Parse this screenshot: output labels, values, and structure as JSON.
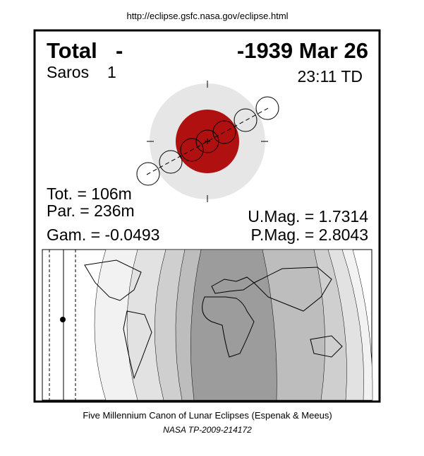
{
  "header": {
    "url": "http://eclipse.gsfc.nasa.gov/eclipse.html"
  },
  "eclipse": {
    "type": "Total",
    "dash": "-",
    "date": "-1939 Mar 26",
    "saros_label": "Saros",
    "saros_number": "1",
    "time": "23:11 TD",
    "stats": {
      "tot": "Tot. = 106m",
      "par": "Par. = 236m",
      "gam": "Gam. = -0.0493",
      "umag": "U.Mag. = 1.7314",
      "pmag": "P.Mag. = 2.8043"
    }
  },
  "footer": {
    "line1": "Five Millennium Canon of Lunar Eclipses (Espenak & Meeus)",
    "line2": "NASA TP-2009-214172"
  }
}
